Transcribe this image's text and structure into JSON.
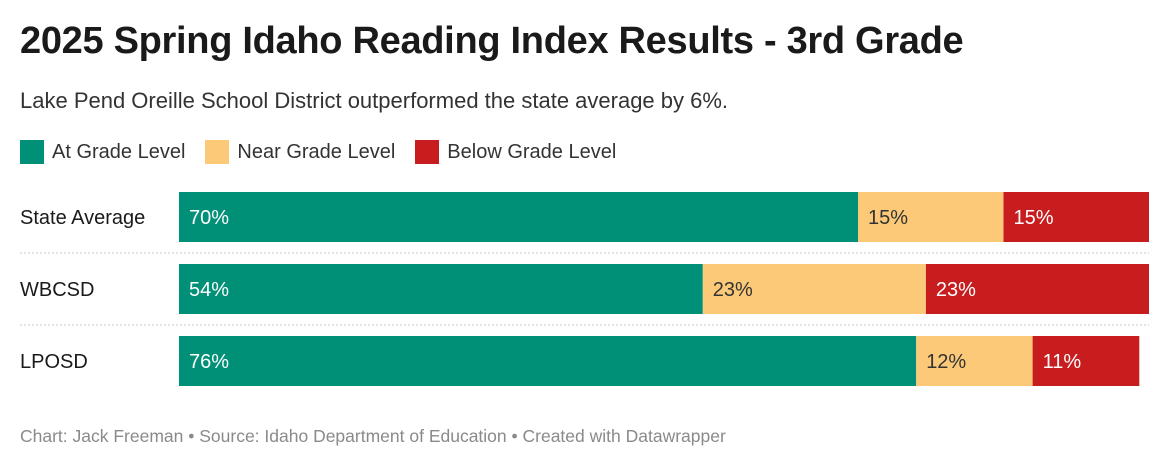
{
  "title": "2025 Spring Idaho Reading Index Results - 3rd Grade",
  "subtitle": "Lake Pend Oreille School District outperformed the state average by 6%.",
  "footer": "Chart: Jack Freeman • Source: Idaho Department of Education • Created with Datawrapper",
  "colors": {
    "at_grade": "#008f77",
    "near_grade": "#fcc978",
    "below_grade": "#c81d1f",
    "separator": "#c8c8c8",
    "label_light": "#ffffff",
    "label_dark": "#333333"
  },
  "chart_data": {
    "type": "bar",
    "orientation": "horizontal",
    "stacked": true,
    "xlim": [
      0,
      100
    ],
    "legend_position": "top-left",
    "categories": [
      "State Average",
      "WBCSD",
      "LPOSD"
    ],
    "series": [
      {
        "name": "At Grade Level",
        "values": [
          70,
          54,
          76
        ],
        "labels": [
          "70%",
          "54%",
          "76%"
        ]
      },
      {
        "name": "Near Grade Level",
        "values": [
          15,
          23,
          12
        ],
        "labels": [
          "15%",
          "23%",
          "12%"
        ]
      },
      {
        "name": "Below Grade Level",
        "values": [
          15,
          23,
          11
        ],
        "labels": [
          "15%",
          "23%",
          "11%"
        ]
      }
    ]
  }
}
